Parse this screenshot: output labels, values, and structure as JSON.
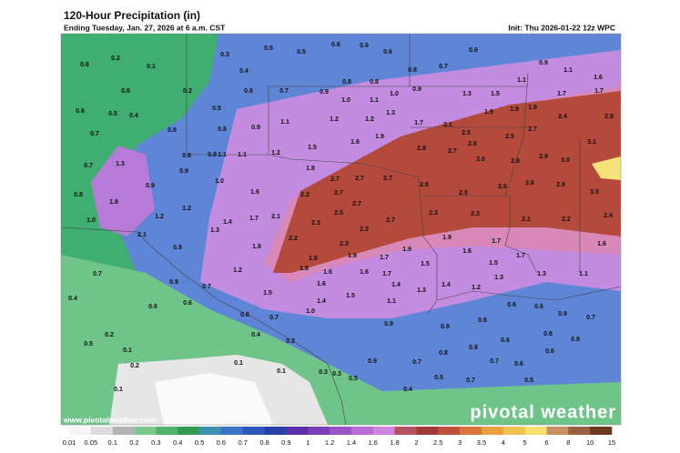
{
  "header": {
    "title": "120-Hour Precipitation (in)",
    "subtitle": "Ending Tuesday, Jan. 27, 2026 at 6 a.m. CST",
    "init": "Init: Thu 2026-01-22 12z WPC"
  },
  "footer": {
    "website": "www.pivotalweather.com",
    "logo": "pivotal weather"
  },
  "legend": {
    "labels": [
      "0.01",
      "0.05",
      "0.1",
      "0.2",
      "0.3",
      "0.4",
      "0.5",
      "0.6",
      "0.7",
      "0.8",
      "0.9",
      "1",
      "1.2",
      "1.4",
      "1.6",
      "1.8",
      "2",
      "2.5",
      "3",
      "3.5",
      "4",
      "5",
      "6",
      "8",
      "10",
      "15"
    ],
    "colors": [
      "#f5f5f5",
      "#dcdcdc",
      "#b4b4b4",
      "#7fc68f",
      "#4fb36a",
      "#2e9a52",
      "#3e8fb0",
      "#3a73c8",
      "#3057c0",
      "#2b3fa8",
      "#5b2fa8",
      "#7a3fb8",
      "#9a52c8",
      "#b86ad6",
      "#d283e0",
      "#b55363",
      "#a33a3a",
      "#c0503a",
      "#d8743a",
      "#e8a040",
      "#f0c050",
      "#f8e070",
      "#c89060",
      "#9a6040",
      "#6b3a20"
    ]
  },
  "map": {
    "labels": [
      "0.6",
      "0.2",
      "0.1",
      "0.3",
      "0.4",
      "0.5",
      "0.5",
      "0.6",
      "0.6",
      "0.6",
      "0.8",
      "0.7",
      "0.6",
      "0.9",
      "1.1",
      "1.6",
      "1.7",
      "1.7",
      "1.1",
      "1.5",
      "1.9",
      "1.9",
      "1.3",
      "0.9",
      "1.0",
      "1.1",
      "1.0",
      "0.8",
      "0.8",
      "0.9",
      "0.7",
      "0.6",
      "0.2",
      "0.5",
      "0.6",
      "0.6",
      "0.5",
      "0.4",
      "0.7",
      "0.6",
      "0.8",
      "0.9",
      "1.1",
      "1.2",
      "1.2",
      "1.3",
      "1.7",
      "2.1",
      "2.5",
      "2.6",
      "1.9",
      "2.4",
      "2.8",
      "2.7",
      "2.5",
      "3.1",
      "2.8",
      "2.7",
      "3.0",
      "2.8",
      "2.9",
      "3.0",
      "2.6",
      "2.9",
      "2.6",
      "3.5",
      "1.5",
      "1.6",
      "1.9",
      "1.8",
      "2.7",
      "2.7",
      "2.7",
      "2.8",
      "2.5",
      "1.2",
      "1.1",
      "1.1",
      "0.8",
      "0.8",
      "1.3",
      "0.7",
      "1.0",
      "0.9",
      "0.9",
      "0.8",
      "1.8",
      "2.2",
      "2.7",
      "2.7",
      "2.5",
      "2.7",
      "2.3",
      "2.3",
      "2.1",
      "2.2",
      "2.4",
      "1.6",
      "1.2",
      "2.1",
      "2.3",
      "2.3",
      "1.4",
      "1.7",
      "1.2",
      "1.0",
      "2.1",
      "1.3",
      "2.2",
      "2.3",
      "1.9",
      "1.9",
      "1.7",
      "1.6",
      "1.7",
      "1.6",
      "1.8",
      "0.9",
      "1.6",
      "1.9",
      "1.7",
      "1.5",
      "1.5",
      "1.8",
      "1.2",
      "1.6",
      "1.6",
      "1.7",
      "1.3",
      "0.7",
      "0.9",
      "0.7",
      "1.5",
      "1.6",
      "1.5",
      "1.4",
      "1.3",
      "1.4",
      "1.2",
      "1.3",
      "1.1",
      "0.4",
      "0.6",
      "0.6",
      "0.7",
      "1.0",
      "1.4",
      "1.1",
      "0.6",
      "0.6",
      "0.9",
      "0.7",
      "0.6",
      "0.8",
      "0.6",
      "0.9",
      "0.2",
      "0.5",
      "0.4",
      "0.3",
      "0.1",
      "0.2",
      "0.8",
      "0.8",
      "0.8",
      "0.6",
      "0.6",
      "0.8",
      "0.9",
      "0.7",
      "0.7",
      "0.6",
      "0.1",
      "0.1",
      "0.3",
      "0.3",
      "0.5",
      "0.5",
      "0.7",
      "0.5",
      "0.1",
      "0.4"
    ]
  }
}
